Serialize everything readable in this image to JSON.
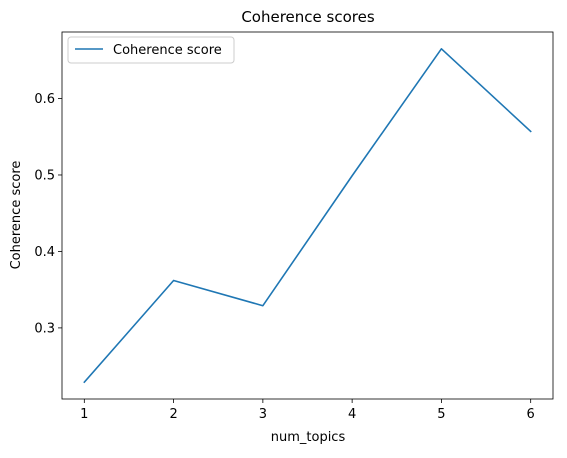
{
  "chart_data": {
    "type": "line",
    "title": "Coherence scores",
    "xlabel": "num_topics",
    "ylabel": "Coherence score",
    "x": [
      1,
      2,
      3,
      4,
      5,
      6
    ],
    "series": [
      {
        "name": "Coherence score",
        "color": "#1f77b4",
        "values": [
          0.229,
          0.362,
          0.329,
          0.499,
          0.665,
          0.557
        ]
      }
    ],
    "xlim": [
      0.75,
      6.25
    ],
    "ylim": [
      0.207,
      0.687
    ],
    "xticks": [
      1,
      2,
      3,
      4,
      5,
      6
    ],
    "yticks": [
      0.3,
      0.4,
      0.5,
      0.6
    ],
    "ytick_labels": [
      "0.3",
      "0.4",
      "0.5",
      "0.6"
    ],
    "grid": false,
    "legend_position": "top-left"
  }
}
